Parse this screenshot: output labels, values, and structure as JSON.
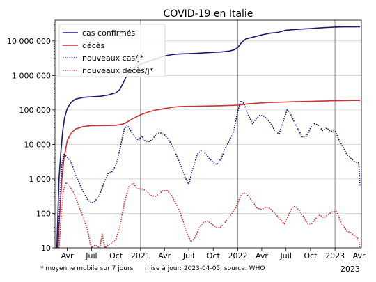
{
  "chart_data": {
    "type": "line",
    "title": "COVID-19 en Italie",
    "xlabel": "",
    "ylabel": "",
    "y_scale": "log",
    "ylim": [
      10,
      40000000
    ],
    "xlim": [
      "2020-02-15",
      "2023-04-10"
    ],
    "grid": true,
    "legend_position": "top-left",
    "y_ticks": [
      {
        "value": 10,
        "label": "10"
      },
      {
        "value": 100,
        "label": "100"
      },
      {
        "value": 1000,
        "label": "1 000"
      },
      {
        "value": 10000,
        "label": "10 000"
      },
      {
        "value": 100000,
        "label": "100 000"
      },
      {
        "value": 1000000,
        "label": "1 000 000"
      },
      {
        "value": 10000000,
        "label": "10 000 000"
      }
    ],
    "x_ticks": [
      {
        "date": "2020-04-01",
        "label": "Avr"
      },
      {
        "date": "2020-07-01",
        "label": "Juil"
      },
      {
        "date": "2020-10-01",
        "label": "Oct"
      },
      {
        "date": "2021-01-01",
        "label": "2021"
      },
      {
        "date": "2021-04-01",
        "label": "Avr"
      },
      {
        "date": "2021-07-01",
        "label": "Juil"
      },
      {
        "date": "2021-10-01",
        "label": "Oct"
      },
      {
        "date": "2022-01-01",
        "label": "2022"
      },
      {
        "date": "2022-04-01",
        "label": "Avr"
      },
      {
        "date": "2022-07-01",
        "label": "Juil"
      },
      {
        "date": "2022-10-01",
        "label": "Oct"
      },
      {
        "date": "2023-01-01",
        "label": "2023"
      },
      {
        "date": "2023-04-01",
        "label": "Avr"
      }
    ],
    "year_gridlines": [
      "2021-01-01",
      "2022-01-01",
      "2023-01-01"
    ],
    "corner_label": "2023",
    "footnote": "* moyenne mobile sur 7 jours",
    "source_note": "mise à jour: 2023-04-05, source: WHO",
    "series": [
      {
        "name": "cas confirmés",
        "color": "#191970",
        "style": "solid",
        "points": [
          [
            "2020-02-22",
            10
          ],
          [
            "2020-03-01",
            1000
          ],
          [
            "2020-03-08",
            6000
          ],
          [
            "2020-03-15",
            25000
          ],
          [
            "2020-03-22",
            60000
          ],
          [
            "2020-04-01",
            110000
          ],
          [
            "2020-04-15",
            165000
          ],
          [
            "2020-05-01",
            205000
          ],
          [
            "2020-06-01",
            232000
          ],
          [
            "2020-07-01",
            240000
          ],
          [
            "2020-08-01",
            248000
          ],
          [
            "2020-09-01",
            270000
          ],
          [
            "2020-10-01",
            315000
          ],
          [
            "2020-10-15",
            390000
          ],
          [
            "2020-11-01",
            700000
          ],
          [
            "2020-11-15",
            1200000
          ],
          [
            "2020-12-01",
            1600000
          ],
          [
            "2021-01-01",
            2100000
          ],
          [
            "2021-02-01",
            2600000
          ],
          [
            "2021-03-01",
            3000000
          ],
          [
            "2021-04-01",
            3650000
          ],
          [
            "2021-05-01",
            4050000
          ],
          [
            "2021-06-01",
            4220000
          ],
          [
            "2021-07-01",
            4270000
          ],
          [
            "2021-08-01",
            4370000
          ],
          [
            "2021-09-01",
            4550000
          ],
          [
            "2021-10-01",
            4680000
          ],
          [
            "2021-11-01",
            4800000
          ],
          [
            "2021-12-01",
            5100000
          ],
          [
            "2021-12-20",
            5600000
          ],
          [
            "2022-01-01",
            6500000
          ],
          [
            "2022-01-15",
            9000000
          ],
          [
            "2022-02-01",
            11500000
          ],
          [
            "2022-03-01",
            13000000
          ],
          [
            "2022-04-01",
            15000000
          ],
          [
            "2022-05-01",
            16800000
          ],
          [
            "2022-06-01",
            17700000
          ],
          [
            "2022-07-01",
            20500000
          ],
          [
            "2022-08-01",
            21500000
          ],
          [
            "2022-09-01",
            22200000
          ],
          [
            "2022-10-01",
            22800000
          ],
          [
            "2022-11-01",
            23800000
          ],
          [
            "2022-12-01",
            24600000
          ],
          [
            "2023-01-01",
            25300000
          ],
          [
            "2023-02-01",
            25550000
          ],
          [
            "2023-03-01",
            25650000
          ],
          [
            "2023-04-05",
            25700000
          ]
        ]
      },
      {
        "name": "décès",
        "color": "#cc3333",
        "style": "solid",
        "points": [
          [
            "2020-02-26",
            10
          ],
          [
            "2020-03-05",
            150
          ],
          [
            "2020-03-12",
            1000
          ],
          [
            "2020-03-20",
            4000
          ],
          [
            "2020-04-01",
            13000
          ],
          [
            "2020-04-15",
            21000
          ],
          [
            "2020-05-01",
            28000
          ],
          [
            "2020-06-01",
            33000
          ],
          [
            "2020-07-01",
            35000
          ],
          [
            "2020-08-01",
            35300
          ],
          [
            "2020-09-01",
            35500
          ],
          [
            "2020-10-01",
            36000
          ],
          [
            "2020-11-01",
            40000
          ],
          [
            "2020-12-01",
            55000
          ],
          [
            "2021-01-01",
            72000
          ],
          [
            "2021-02-01",
            88000
          ],
          [
            "2021-03-01",
            100000
          ],
          [
            "2021-04-01",
            110000
          ],
          [
            "2021-05-01",
            120000
          ],
          [
            "2021-06-01",
            126000
          ],
          [
            "2021-07-01",
            127500
          ],
          [
            "2021-08-01",
            128000
          ],
          [
            "2021-09-01",
            129500
          ],
          [
            "2021-10-01",
            131000
          ],
          [
            "2021-11-01",
            132500
          ],
          [
            "2021-12-01",
            135000
          ],
          [
            "2022-01-01",
            138000
          ],
          [
            "2022-02-01",
            148000
          ],
          [
            "2022-03-01",
            155000
          ],
          [
            "2022-04-01",
            160000
          ],
          [
            "2022-05-01",
            165000
          ],
          [
            "2022-06-01",
            167500
          ],
          [
            "2022-07-01",
            170000
          ],
          [
            "2022-08-01",
            173000
          ],
          [
            "2022-09-01",
            175000
          ],
          [
            "2022-10-01",
            177000
          ],
          [
            "2022-11-01",
            180000
          ],
          [
            "2022-12-01",
            183000
          ],
          [
            "2023-01-01",
            185500
          ],
          [
            "2023-02-01",
            187500
          ],
          [
            "2023-03-01",
            188500
          ],
          [
            "2023-04-05",
            189000
          ]
        ]
      },
      {
        "name": "nouveaux cas/j*",
        "color": "#191970",
        "style": "dotted",
        "points": [
          [
            "2020-02-25",
            10
          ],
          [
            "2020-03-05",
            400
          ],
          [
            "2020-03-12",
            2500
          ],
          [
            "2020-03-20",
            5200
          ],
          [
            "2020-04-01",
            4300
          ],
          [
            "2020-04-15",
            3100
          ],
          [
            "2020-05-01",
            1400
          ],
          [
            "2020-05-15",
            800
          ],
          [
            "2020-06-01",
            400
          ],
          [
            "2020-06-15",
            260
          ],
          [
            "2020-07-01",
            200
          ],
          [
            "2020-07-15",
            230
          ],
          [
            "2020-08-01",
            350
          ],
          [
            "2020-08-15",
            700
          ],
          [
            "2020-09-01",
            1400
          ],
          [
            "2020-09-15",
            1600
          ],
          [
            "2020-10-01",
            2500
          ],
          [
            "2020-10-15",
            7000
          ],
          [
            "2020-11-01",
            28000
          ],
          [
            "2020-11-12",
            36000
          ],
          [
            "2020-11-25",
            25000
          ],
          [
            "2020-12-10",
            17000
          ],
          [
            "2020-12-25",
            13000
          ],
          [
            "2021-01-05",
            18000
          ],
          [
            "2021-01-15",
            13000
          ],
          [
            "2021-02-01",
            12000
          ],
          [
            "2021-02-15",
            14000
          ],
          [
            "2021-03-01",
            20000
          ],
          [
            "2021-03-15",
            22000
          ],
          [
            "2021-04-01",
            19000
          ],
          [
            "2021-04-15",
            14000
          ],
          [
            "2021-05-01",
            9000
          ],
          [
            "2021-05-15",
            5000
          ],
          [
            "2021-06-01",
            2500
          ],
          [
            "2021-06-15",
            1200
          ],
          [
            "2021-07-01",
            700
          ],
          [
            "2021-07-15",
            1800
          ],
          [
            "2021-08-01",
            5000
          ],
          [
            "2021-08-15",
            6500
          ],
          [
            "2021-09-01",
            5500
          ],
          [
            "2021-09-15",
            4000
          ],
          [
            "2021-10-01",
            3000
          ],
          [
            "2021-10-15",
            2600
          ],
          [
            "2021-11-01",
            4000
          ],
          [
            "2021-11-15",
            8000
          ],
          [
            "2021-12-01",
            13000
          ],
          [
            "2021-12-15",
            22000
          ],
          [
            "2022-01-01",
            90000
          ],
          [
            "2022-01-12",
            185000
          ],
          [
            "2022-01-25",
            150000
          ],
          [
            "2022-02-10",
            70000
          ],
          [
            "2022-02-25",
            40000
          ],
          [
            "2022-03-10",
            55000
          ],
          [
            "2022-03-25",
            70000
          ],
          [
            "2022-04-10",
            65000
          ],
          [
            "2022-05-01",
            45000
          ],
          [
            "2022-05-20",
            25000
          ],
          [
            "2022-06-05",
            20000
          ],
          [
            "2022-06-20",
            45000
          ],
          [
            "2022-07-05",
            100000
          ],
          [
            "2022-07-15",
            85000
          ],
          [
            "2022-08-01",
            45000
          ],
          [
            "2022-08-15",
            28000
          ],
          [
            "2022-09-01",
            16000
          ],
          [
            "2022-09-15",
            17000
          ],
          [
            "2022-10-01",
            30000
          ],
          [
            "2022-10-15",
            40000
          ],
          [
            "2022-11-01",
            36000
          ],
          [
            "2022-11-15",
            25000
          ],
          [
            "2022-12-01",
            30000
          ],
          [
            "2022-12-15",
            24000
          ],
          [
            "2023-01-01",
            25000
          ],
          [
            "2023-01-15",
            14000
          ],
          [
            "2023-02-01",
            8000
          ],
          [
            "2023-02-15",
            5000
          ],
          [
            "2023-03-01",
            4000
          ],
          [
            "2023-03-15",
            3200
          ],
          [
            "2023-03-31",
            2900
          ],
          [
            "2023-04-05",
            600
          ]
        ]
      },
      {
        "name": "nouveaux décès/j*",
        "color": "#cc3333",
        "style": "dotted",
        "points": [
          [
            "2020-03-01",
            10
          ],
          [
            "2020-03-08",
            60
          ],
          [
            "2020-03-16",
            400
          ],
          [
            "2020-03-27",
            800
          ],
          [
            "2020-04-10",
            600
          ],
          [
            "2020-04-25",
            400
          ],
          [
            "2020-05-10",
            200
          ],
          [
            "2020-05-25",
            100
          ],
          [
            "2020-06-05",
            60
          ],
          [
            "2020-06-15",
            35
          ],
          [
            "2020-06-25",
            15
          ],
          [
            "2020-07-01",
            10
          ],
          [
            "2020-07-15",
            12
          ],
          [
            "2020-08-01",
            10
          ],
          [
            "2020-08-10",
            25
          ],
          [
            "2020-08-20",
            10
          ],
          [
            "2020-09-01",
            12
          ],
          [
            "2020-09-15",
            14
          ],
          [
            "2020-10-01",
            18
          ],
          [
            "2020-10-15",
            40
          ],
          [
            "2020-11-01",
            200
          ],
          [
            "2020-11-20",
            650
          ],
          [
            "2020-12-05",
            750
          ],
          [
            "2020-12-20",
            520
          ],
          [
            "2021-01-10",
            500
          ],
          [
            "2021-01-25",
            430
          ],
          [
            "2021-02-10",
            330
          ],
          [
            "2021-02-25",
            310
          ],
          [
            "2021-03-10",
            360
          ],
          [
            "2021-03-25",
            450
          ],
          [
            "2021-04-10",
            460
          ],
          [
            "2021-04-25",
            350
          ],
          [
            "2021-05-10",
            220
          ],
          [
            "2021-05-25",
            130
          ],
          [
            "2021-06-10",
            60
          ],
          [
            "2021-06-25",
            25
          ],
          [
            "2021-07-10",
            15
          ],
          [
            "2021-07-25",
            20
          ],
          [
            "2021-08-10",
            40
          ],
          [
            "2021-08-25",
            55
          ],
          [
            "2021-09-10",
            60
          ],
          [
            "2021-09-25",
            50
          ],
          [
            "2021-10-10",
            40
          ],
          [
            "2021-10-25",
            38
          ],
          [
            "2021-11-10",
            50
          ],
          [
            "2021-11-25",
            70
          ],
          [
            "2021-12-10",
            100
          ],
          [
            "2021-12-25",
            150
          ],
          [
            "2022-01-10",
            300
          ],
          [
            "2022-01-20",
            390
          ],
          [
            "2022-02-01",
            380
          ],
          [
            "2022-02-15",
            280
          ],
          [
            "2022-03-01",
            200
          ],
          [
            "2022-03-15",
            140
          ],
          [
            "2022-04-01",
            130
          ],
          [
            "2022-04-15",
            150
          ],
          [
            "2022-05-01",
            140
          ],
          [
            "2022-05-15",
            110
          ],
          [
            "2022-06-01",
            80
          ],
          [
            "2022-06-15",
            60
          ],
          [
            "2022-06-25",
            50
          ],
          [
            "2022-07-10",
            90
          ],
          [
            "2022-07-25",
            150
          ],
          [
            "2022-08-05",
            160
          ],
          [
            "2022-08-20",
            120
          ],
          [
            "2022-09-05",
            80
          ],
          [
            "2022-09-20",
            50
          ],
          [
            "2022-10-05",
            50
          ],
          [
            "2022-10-20",
            70
          ],
          [
            "2022-11-05",
            90
          ],
          [
            "2022-11-20",
            75
          ],
          [
            "2022-12-05",
            90
          ],
          [
            "2022-12-20",
            110
          ],
          [
            "2023-01-05",
            115
          ],
          [
            "2023-01-15",
            80
          ],
          [
            "2023-01-25",
            50
          ],
          [
            "2023-02-05",
            40
          ],
          [
            "2023-02-15",
            30
          ],
          [
            "2023-03-01",
            28
          ],
          [
            "2023-03-15",
            22
          ],
          [
            "2023-03-31",
            18
          ],
          [
            "2023-04-05",
            10
          ]
        ]
      }
    ]
  }
}
